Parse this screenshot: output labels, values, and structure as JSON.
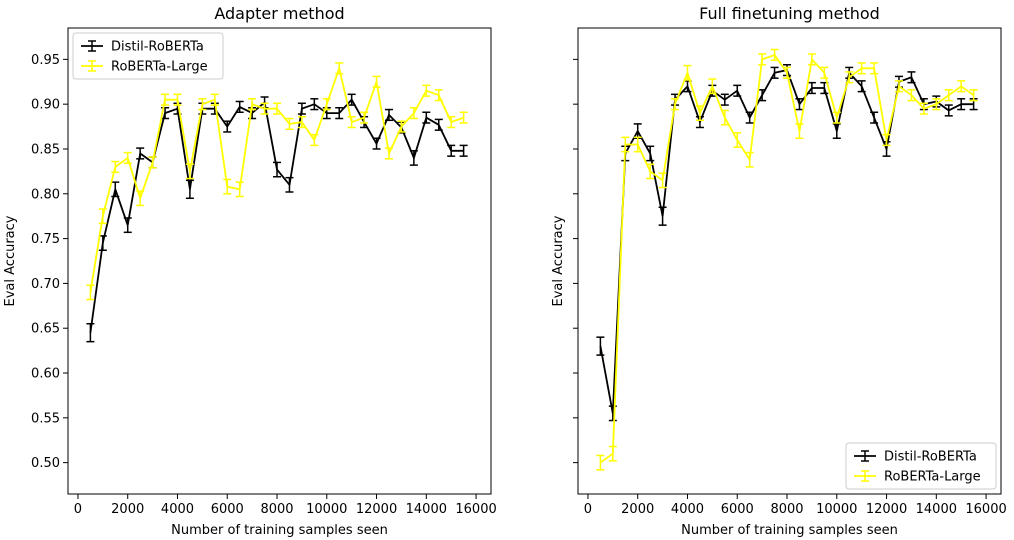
{
  "chart_data": [
    {
      "type": "line",
      "title": "Adapter method",
      "xlabel": "Number of training samples seen",
      "ylabel": "Eval Accuracy",
      "xlim": [
        -400,
        16600
      ],
      "ylim": [
        0.465,
        0.985
      ],
      "xticks": [
        0,
        2000,
        4000,
        6000,
        8000,
        10000,
        12000,
        14000,
        16000
      ],
      "yticks": [
        0.5,
        0.55,
        0.6,
        0.65,
        0.7,
        0.75,
        0.8,
        0.85,
        0.9,
        0.95
      ],
      "tick_labels_y_visible": true,
      "legend_position": "top-left",
      "series": [
        {
          "name": "Distil-RoBERTa",
          "color": "#000000",
          "x": [
            500,
            1000,
            1500,
            2000,
            2500,
            3000,
            3500,
            4000,
            4500,
            5000,
            5500,
            6000,
            6500,
            7000,
            7500,
            8000,
            8500,
            9000,
            9500,
            10000,
            10500,
            11000,
            11500,
            12000,
            12500,
            13000,
            13500,
            14000,
            14500,
            15000,
            15500
          ],
          "y": [
            0.645,
            0.745,
            0.805,
            0.765,
            0.845,
            0.835,
            0.89,
            0.895,
            0.805,
            0.895,
            0.895,
            0.875,
            0.897,
            0.89,
            0.902,
            0.827,
            0.81,
            0.895,
            0.9,
            0.89,
            0.89,
            0.905,
            0.88,
            0.856,
            0.888,
            0.874,
            0.84,
            0.885,
            0.877,
            0.848,
            0.848
          ],
          "err": [
            0.01,
            0.008,
            0.008,
            0.008,
            0.006,
            0.006,
            0.006,
            0.006,
            0.01,
            0.006,
            0.006,
            0.006,
            0.006,
            0.006,
            0.006,
            0.008,
            0.008,
            0.006,
            0.006,
            0.006,
            0.006,
            0.006,
            0.006,
            0.006,
            0.006,
            0.006,
            0.008,
            0.006,
            0.006,
            0.006,
            0.006
          ]
        },
        {
          "name": "RoBERTa-Large",
          "color": "#ffff00",
          "x": [
            500,
            1000,
            1500,
            2000,
            2500,
            3000,
            3500,
            4000,
            4500,
            5000,
            5500,
            6000,
            6500,
            7000,
            7500,
            8000,
            8500,
            9000,
            9500,
            10000,
            10500,
            11000,
            11500,
            12000,
            12500,
            13000,
            13500,
            14000,
            14500,
            15000,
            15500
          ],
          "y": [
            0.69,
            0.775,
            0.83,
            0.84,
            0.795,
            0.835,
            0.905,
            0.905,
            0.825,
            0.9,
            0.905,
            0.808,
            0.805,
            0.9,
            0.895,
            0.895,
            0.878,
            0.88,
            0.86,
            0.9,
            0.94,
            0.88,
            0.885,
            0.925,
            0.845,
            0.875,
            0.89,
            0.915,
            0.91,
            0.88,
            0.885
          ],
          "err": [
            0.008,
            0.008,
            0.006,
            0.006,
            0.008,
            0.006,
            0.006,
            0.006,
            0.008,
            0.006,
            0.006,
            0.008,
            0.008,
            0.006,
            0.006,
            0.006,
            0.006,
            0.006,
            0.006,
            0.006,
            0.006,
            0.006,
            0.006,
            0.006,
            0.006,
            0.006,
            0.006,
            0.006,
            0.006,
            0.006,
            0.006
          ]
        }
      ]
    },
    {
      "type": "line",
      "title": "Full finetuning method",
      "xlabel": "Number of training samples seen",
      "ylabel": "Eval Accuracy",
      "xlim": [
        -400,
        16600
      ],
      "ylim": [
        0.465,
        0.985
      ],
      "xticks": [
        0,
        2000,
        4000,
        6000,
        8000,
        10000,
        12000,
        14000,
        16000
      ],
      "yticks": [
        0.5,
        0.55,
        0.6,
        0.65,
        0.7,
        0.75,
        0.8,
        0.85,
        0.9,
        0.95
      ],
      "tick_labels_y_visible": false,
      "legend_position": "bottom-right",
      "series": [
        {
          "name": "Distil-RoBERTa",
          "color": "#000000",
          "x": [
            500,
            1000,
            1500,
            2000,
            2500,
            3000,
            3500,
            4000,
            4500,
            5000,
            5500,
            6000,
            6500,
            7000,
            7500,
            8000,
            8500,
            9000,
            9500,
            10000,
            10500,
            11000,
            11500,
            12000,
            12500,
            13000,
            13500,
            14000,
            14500,
            15000,
            15500
          ],
          "y": [
            0.63,
            0.555,
            0.845,
            0.87,
            0.845,
            0.775,
            0.905,
            0.92,
            0.88,
            0.915,
            0.905,
            0.915,
            0.885,
            0.91,
            0.935,
            0.938,
            0.9,
            0.918,
            0.918,
            0.87,
            0.935,
            0.92,
            0.885,
            0.85,
            0.925,
            0.93,
            0.9,
            0.903,
            0.893,
            0.9,
            0.9
          ],
          "err": [
            0.01,
            0.008,
            0.008,
            0.008,
            0.008,
            0.01,
            0.006,
            0.006,
            0.006,
            0.006,
            0.006,
            0.006,
            0.006,
            0.006,
            0.006,
            0.006,
            0.006,
            0.006,
            0.006,
            0.008,
            0.006,
            0.006,
            0.006,
            0.008,
            0.006,
            0.006,
            0.006,
            0.006,
            0.006,
            0.006,
            0.006
          ]
        },
        {
          "name": "RoBERTa-Large",
          "color": "#ffff00",
          "x": [
            500,
            1000,
            1500,
            2000,
            2500,
            3000,
            3500,
            4000,
            4500,
            5000,
            5500,
            6000,
            6500,
            7000,
            7500,
            8000,
            8500,
            9000,
            9500,
            10000,
            10500,
            11000,
            11500,
            12000,
            12500,
            13000,
            13500,
            14000,
            14500,
            15000,
            15500
          ],
          "y": [
            0.5,
            0.51,
            0.855,
            0.855,
            0.825,
            0.815,
            0.9,
            0.935,
            0.89,
            0.92,
            0.885,
            0.86,
            0.838,
            0.95,
            0.955,
            0.935,
            0.87,
            0.95,
            0.935,
            0.885,
            0.93,
            0.94,
            0.94,
            0.86,
            0.92,
            0.91,
            0.895,
            0.9,
            0.91,
            0.92,
            0.91
          ],
          "err": [
            0.008,
            0.008,
            0.008,
            0.008,
            0.008,
            0.008,
            0.006,
            0.008,
            0.008,
            0.008,
            0.008,
            0.008,
            0.008,
            0.006,
            0.006,
            0.006,
            0.008,
            0.006,
            0.006,
            0.006,
            0.006,
            0.006,
            0.006,
            0.006,
            0.006,
            0.006,
            0.006,
            0.006,
            0.006,
            0.006,
            0.006
          ]
        }
      ]
    }
  ]
}
